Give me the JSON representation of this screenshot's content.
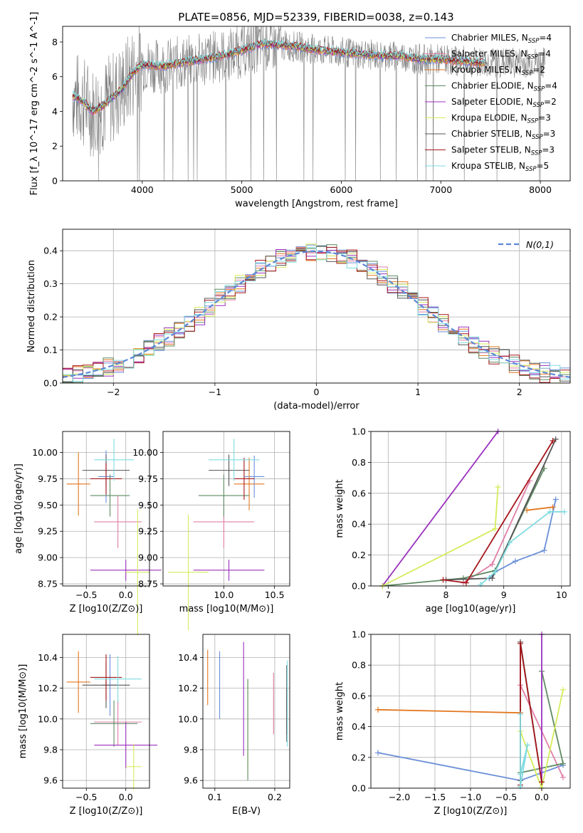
{
  "figure_title": "PLATE=0856, MJD=52339, FIBERID=0038, z=0.143",
  "chart_data": [
    {
      "id": "spectrum",
      "type": "line",
      "title": "PLATE=0856, MJD=52339, FIBERID=0038, z=0.143",
      "xlabel": "wavelength [Angstrom, rest frame]",
      "ylabel": "Flux [f_λ 10^-17 erg cm^-2 s^-1 A^-1]",
      "xlim": [
        3200,
        8300
      ],
      "ylim": [
        0,
        8.9
      ],
      "xticks": [
        4000,
        5000,
        6000,
        7000,
        8000
      ],
      "yticks": [
        0,
        2,
        4,
        6,
        8
      ],
      "grid": false,
      "legend_position": "right",
      "data_color": "#808080",
      "model_x": [
        3300,
        3400,
        3500,
        3600,
        3700,
        3800,
        3900,
        4000,
        4200,
        4400,
        4600,
        4800,
        5000,
        5200,
        5400,
        5600,
        5800,
        6000,
        6200,
        6400,
        6600,
        6800,
        7000,
        7200,
        7400
      ],
      "model_y": [
        4.9,
        4.6,
        4.0,
        4.3,
        4.8,
        5.3,
        6.2,
        6.7,
        6.6,
        6.8,
        7.0,
        7.2,
        7.5,
        7.9,
        7.8,
        7.7,
        7.5,
        7.4,
        7.3,
        7.2,
        7.2,
        7.0,
        7.0,
        6.9,
        6.8
      ],
      "series": [
        {
          "name": "Chabrier MILES, N_SSP=4",
          "color": "#6a8fd8"
        },
        {
          "name": "Salpeter MILES, N_SSP=4",
          "color": "#e07fa6"
        },
        {
          "name": "Kroupa MILES, N_SSP=2",
          "color": "#e3771f"
        },
        {
          "name": "Chabrier ELODIE, N_SSP=4",
          "color": "#5e8b62"
        },
        {
          "name": "Salpeter ELODIE, N_SSP=2",
          "color": "#9b30bf"
        },
        {
          "name": "Kroupa ELODIE, N_SSP=3",
          "color": "#d4ec5a"
        },
        {
          "name": "Chabrier STELIB, N_SSP=3",
          "color": "#555555"
        },
        {
          "name": "Salpeter STELIB, N_SSP=3",
          "color": "#a5161b"
        },
        {
          "name": "Kroupa STELIB, N_SSP=5",
          "color": "#7fdbe0"
        }
      ]
    },
    {
      "id": "residuals",
      "type": "bar",
      "xlabel": "(data-model)/error",
      "ylabel": "Normed distribution",
      "xlim": [
        -2.5,
        2.5
      ],
      "ylim": [
        0,
        0.465
      ],
      "xticks": [
        -2,
        -1,
        0,
        1,
        2
      ],
      "yticks": [
        0.0,
        0.1,
        0.2,
        0.3,
        0.4
      ],
      "grid": true,
      "legend_position": "top-right",
      "legend_label": "N(0,1)",
      "reference_curve": "normal(0,1)",
      "reference_color": "#5b87d6",
      "bin_edges_start": -2.5,
      "bin_width": 0.1,
      "note_series_order": "Chabrier MILES, Salpeter MILES, Kroupa MILES, Chabrier ELODIE, Salpeter ELODIE, Kroupa ELODIE, Chabrier STELIB, Salpeter STELIB, Kroupa STELIB"
    },
    {
      "id": "age_vs_Z",
      "type": "scatter",
      "xlabel": "Z [log10(Z/Z⊙)]",
      "ylabel": "age [log10(age/yr)]",
      "xlim": [
        -0.8,
        0.3
      ],
      "ylim": [
        8.73,
        10.2
      ],
      "xticks": [
        -0.5,
        0.0
      ],
      "yticks": [
        8.75,
        9.0,
        9.25,
        9.5,
        9.75,
        10.0
      ],
      "grid": true,
      "points": [
        {
          "color": "#6a8fd8",
          "x": -0.25,
          "xerr": 0.1,
          "y": 9.77,
          "yerr": 0.25
        },
        {
          "color": "#e07fa6",
          "x": -0.1,
          "xerr": 0.3,
          "y": 9.34,
          "yerr": 0.25
        },
        {
          "color": "#e3771f",
          "x": -0.6,
          "xerr": 0.15,
          "y": 9.7,
          "yerr": 0.3
        },
        {
          "color": "#5e8b62",
          "x": -0.2,
          "xerr": 0.25,
          "y": 9.59,
          "yerr": 0.2
        },
        {
          "color": "#9b30bf",
          "x": 0.0,
          "xerr": 0.45,
          "y": 8.88,
          "yerr": 0.1
        },
        {
          "color": "#d4ec5a",
          "x": 0.15,
          "xerr": 0.15,
          "y": 8.86,
          "yerr": 0.6
        },
        {
          "color": "#555555",
          "x": -0.25,
          "xerr": 0.3,
          "y": 9.83,
          "yerr": 0.15
        },
        {
          "color": "#a5161b",
          "x": -0.25,
          "xerr": 0.2,
          "y": 9.75,
          "yerr": 0.15
        },
        {
          "color": "#7fdbe0",
          "x": -0.15,
          "xerr": 0.25,
          "y": 9.93,
          "yerr": 0.2
        }
      ]
    },
    {
      "id": "age_vs_mass",
      "type": "scatter",
      "xlabel": "mass [log10(M/M⊙)]",
      "ylabel": "",
      "xlim": [
        9.4,
        10.65
      ],
      "ylim": [
        8.73,
        10.2
      ],
      "xticks": [
        10.0,
        10.5
      ],
      "yticks": [
        8.75,
        9.0,
        9.25,
        9.5,
        9.75,
        10.0
      ],
      "grid": true,
      "points": [
        {
          "color": "#6a8fd8",
          "x": 10.3,
          "xerr": 0.1,
          "y": 9.77,
          "yerr": 0.2
        },
        {
          "color": "#e07fa6",
          "x": 10.0,
          "xerr": 0.3,
          "y": 9.34,
          "yerr": 0.25
        },
        {
          "color": "#e3771f",
          "x": 10.25,
          "xerr": 0.15,
          "y": 9.7,
          "yerr": 0.25
        },
        {
          "color": "#5e8b62",
          "x": 10.0,
          "xerr": 0.25,
          "y": 9.59,
          "yerr": 0.2
        },
        {
          "color": "#9b30bf",
          "x": 10.05,
          "xerr": 0.35,
          "y": 8.88,
          "yerr": 0.1
        },
        {
          "color": "#d4ec5a",
          "x": 9.65,
          "xerr": 0.2,
          "y": 8.86,
          "yerr": 0.55
        },
        {
          "color": "#555555",
          "x": 10.05,
          "xerr": 0.2,
          "y": 9.83,
          "yerr": 0.15
        },
        {
          "color": "#a5161b",
          "x": 10.2,
          "xerr": 0.1,
          "y": 9.75,
          "yerr": 0.2
        },
        {
          "color": "#7fdbe0",
          "x": 10.1,
          "xerr": 0.25,
          "y": 9.93,
          "yerr": 0.2
        }
      ]
    },
    {
      "id": "massweight_vs_age",
      "type": "line",
      "xlabel": "age [log10(age/yr)]",
      "ylabel": "mass weight",
      "xlim": [
        6.7,
        10.15
      ],
      "ylim": [
        0,
        1.0
      ],
      "xticks": [
        7,
        8,
        9,
        10
      ],
      "yticks": [
        0.0,
        0.2,
        0.4,
        0.6,
        0.8,
        1.0
      ],
      "grid": true,
      "series": [
        {
          "color": "#6a8fd8",
          "x": [
            8.75,
            8.85,
            9.2,
            9.7,
            9.9
          ],
          "y": [
            0.05,
            0.09,
            0.16,
            0.23,
            0.56
          ]
        },
        {
          "color": "#e07fa6",
          "x": [
            8.3,
            8.8,
            9.45
          ],
          "y": [
            0.02,
            0.14,
            0.68
          ]
        },
        {
          "color": "#e3771f",
          "x": [
            9.4,
            9.85
          ],
          "y": [
            0.49,
            0.51
          ]
        },
        {
          "color": "#5e8b62",
          "x": [
            6.9,
            8.3,
            8.85,
            9.7
          ],
          "y": [
            0.0,
            0.05,
            0.1,
            0.76
          ]
        },
        {
          "color": "#9b30bf",
          "x": [
            6.9,
            8.9
          ],
          "y": [
            0.0,
            1.0
          ]
        },
        {
          "color": "#d4ec5a",
          "x": [
            6.9,
            8.85,
            8.9
          ],
          "y": [
            0.0,
            0.37,
            0.64
          ]
        },
        {
          "color": "#555555",
          "x": [
            8.0,
            8.8,
            9.9
          ],
          "y": [
            0.04,
            0.05,
            0.95
          ]
        },
        {
          "color": "#a5161b",
          "x": [
            7.95,
            8.35,
            9.85
          ],
          "y": [
            0.04,
            0.02,
            0.94
          ]
        },
        {
          "color": "#7fdbe0",
          "x": [
            8.6,
            8.85,
            9.1,
            9.8,
            10.05
          ],
          "y": [
            0.01,
            0.09,
            0.28,
            0.48,
            0.48
          ]
        }
      ]
    },
    {
      "id": "mass_vs_Z",
      "type": "scatter",
      "xlabel": "Z [log10(Z/Z⊙)]",
      "ylabel": "mass [log10(M/M⊙)]",
      "xlim": [
        -0.8,
        0.3
      ],
      "ylim": [
        9.55,
        10.55
      ],
      "xticks": [
        -0.5,
        0.0
      ],
      "yticks": [
        9.6,
        9.8,
        10.0,
        10.2,
        10.4
      ],
      "grid": true,
      "points": [
        {
          "color": "#6a8fd8",
          "x": -0.2,
          "xerr": 0.1,
          "y": 10.22,
          "yerr": 0.2
        },
        {
          "color": "#e07fa6",
          "x": -0.1,
          "xerr": 0.3,
          "y": 9.98,
          "yerr": 0.15
        },
        {
          "color": "#e3771f",
          "x": -0.6,
          "xerr": 0.15,
          "y": 10.24,
          "yerr": 0.2
        },
        {
          "color": "#5e8b62",
          "x": -0.15,
          "xerr": 0.3,
          "y": 9.97,
          "yerr": 0.15
        },
        {
          "color": "#9b30bf",
          "x": 0.0,
          "xerr": 0.4,
          "y": 9.83,
          "yerr": 0.15
        },
        {
          "color": "#d4ec5a",
          "x": 0.1,
          "xerr": 0.1,
          "y": 9.69,
          "yerr": 0.15
        },
        {
          "color": "#555555",
          "x": -0.25,
          "xerr": 0.3,
          "y": 10.22,
          "yerr": 0.15
        },
        {
          "color": "#a5161b",
          "x": -0.25,
          "xerr": 0.2,
          "y": 10.27,
          "yerr": 0.15
        },
        {
          "color": "#7fdbe0",
          "x": -0.1,
          "xerr": 0.3,
          "y": 10.26,
          "yerr": 0.15
        }
      ]
    },
    {
      "id": "mass_vs_ebv",
      "type": "scatter",
      "xlabel": "E(B-V)",
      "ylabel": "",
      "xlim": [
        0.08,
        0.225
      ],
      "ylim": [
        9.55,
        10.55
      ],
      "xticks": [
        0.1,
        0.2
      ],
      "yticks": [
        9.6,
        9.8,
        10.0,
        10.2,
        10.4
      ],
      "grid": true,
      "points": [
        {
          "color": "#e3771f",
          "x": 0.088,
          "y": 10.27,
          "yerr": 0.18
        },
        {
          "color": "#6a8fd8",
          "x": 0.108,
          "y": 10.22,
          "yerr": 0.22
        },
        {
          "color": "#9b30bf",
          "x": 0.148,
          "y": 10.13,
          "yerr": 0.37
        },
        {
          "color": "#d4ec5a",
          "x": 0.155,
          "y": 9.96,
          "yerr": 0.3
        },
        {
          "color": "#5e8b62",
          "x": 0.155,
          "y": 9.93,
          "yerr": 0.33
        },
        {
          "color": "#e07fa6",
          "x": 0.198,
          "y": 10.1,
          "yerr": 0.2
        },
        {
          "color": "#a5161b",
          "x": 0.22,
          "y": 10.05,
          "yerr": 0.15
        },
        {
          "color": "#555555",
          "x": 0.22,
          "y": 10.1,
          "yerr": 0.25
        },
        {
          "color": "#7fdbe0",
          "x": 0.221,
          "y": 10.1,
          "yerr": 0.28
        }
      ]
    },
    {
      "id": "massweight_vs_Z",
      "type": "line",
      "xlabel": "Z [log10(Z/Z⊙)]",
      "ylabel": "mass weight",
      "xlim": [
        -2.4,
        0.4
      ],
      "ylim": [
        0,
        1.0
      ],
      "xticks": [
        -2.0,
        -1.5,
        -1.0,
        -0.5,
        0.0
      ],
      "yticks": [
        0.0,
        0.2,
        0.4,
        0.6,
        0.8,
        1.0
      ],
      "grid": true,
      "series": [
        {
          "color": "#6a8fd8",
          "x": [
            -2.3,
            -0.3,
            0.3
          ],
          "y": [
            0.23,
            0.05,
            0.15
          ]
        },
        {
          "color": "#e07fa6",
          "x": [
            -0.3,
            0.3
          ],
          "y": [
            0.67,
            0.07
          ]
        },
        {
          "color": "#e3771f",
          "x": [
            -2.3,
            -0.3
          ],
          "y": [
            0.51,
            0.49
          ]
        },
        {
          "color": "#5e8b62",
          "x": [
            0.0,
            0.3,
            -0.3
          ],
          "y": [
            0.76,
            0.16,
            0.1
          ]
        },
        {
          "color": "#9b30bf",
          "x": [
            0.0,
            0.0
          ],
          "y": [
            0.0,
            1.0
          ]
        },
        {
          "color": "#d4ec5a",
          "x": [
            -0.3,
            0.0,
            0.3
          ],
          "y": [
            0.37,
            0.0,
            0.64
          ]
        },
        {
          "color": "#555555",
          "x": [
            -0.3,
            -0.3,
            0.0
          ],
          "y": [
            0.05,
            0.95,
            0.04
          ]
        },
        {
          "color": "#a5161b",
          "x": [
            -0.3,
            -0.3,
            0.0
          ],
          "y": [
            0.02,
            0.94,
            0.04
          ]
        },
        {
          "color": "#7fdbe0",
          "x": [
            -0.3,
            -0.3,
            -0.2,
            -0.3
          ],
          "y": [
            0.48,
            0.01,
            0.28,
            0.09
          ]
        }
      ]
    }
  ]
}
